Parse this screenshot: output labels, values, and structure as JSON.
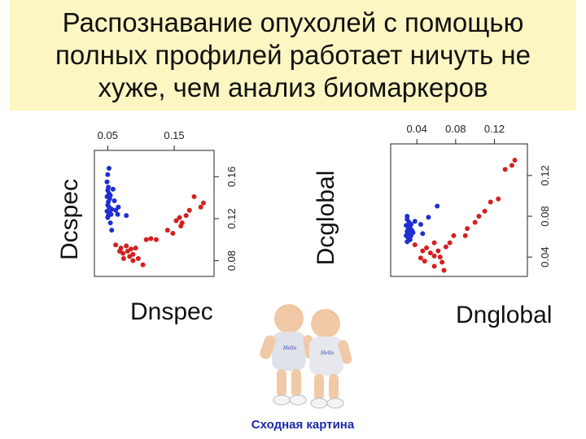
{
  "title": {
    "lines": [
      "Распознавание опухолей с помощью",
      "полных профилей работает ничуть не",
      "хуже, чем анализ биомаркеров"
    ]
  },
  "caption": "Сходная картина",
  "colors": {
    "title_background": "#fbf6c2",
    "series_blue": "#1f2fd0",
    "series_red": "#d42020",
    "caption": "#1c2aa8"
  },
  "chart_data": [
    {
      "type": "scatter",
      "xlabel": "Dnspec",
      "ylabel": "Dcspec",
      "x_ticks": [
        "0.05",
        "0.15"
      ],
      "y_ticks": [
        "0.08",
        "0.12",
        "0.16"
      ],
      "xlim": [
        0.03,
        0.21
      ],
      "ylim": [
        0.065,
        0.185
      ],
      "series": [
        {
          "color": "#1f2fd0",
          "points": [
            [
              0.05,
              0.162
            ],
            [
              0.052,
              0.168
            ],
            [
              0.049,
              0.155
            ],
            [
              0.051,
              0.15
            ],
            [
              0.05,
              0.147
            ],
            [
              0.052,
              0.144
            ],
            [
              0.049,
              0.141
            ],
            [
              0.053,
              0.139
            ],
            [
              0.051,
              0.136
            ],
            [
              0.054,
              0.142
            ],
            [
              0.05,
              0.133
            ],
            [
              0.052,
              0.131
            ],
            [
              0.056,
              0.129
            ],
            [
              0.049,
              0.127
            ],
            [
              0.053,
              0.126
            ],
            [
              0.051,
              0.123
            ],
            [
              0.055,
              0.124
            ],
            [
              0.05,
              0.121
            ],
            [
              0.058,
              0.148
            ],
            [
              0.06,
              0.137
            ],
            [
              0.062,
              0.128
            ],
            [
              0.065,
              0.124
            ],
            [
              0.066,
              0.131
            ],
            [
              0.078,
              0.123
            ],
            [
              0.056,
              0.109
            ],
            [
              0.054,
              0.116
            ]
          ]
        },
        {
          "color": "#d42020",
          "points": [
            [
              0.062,
              0.095
            ],
            [
              0.07,
              0.092
            ],
            [
              0.068,
              0.089
            ],
            [
              0.073,
              0.087
            ],
            [
              0.078,
              0.094
            ],
            [
              0.08,
              0.089
            ],
            [
              0.085,
              0.091
            ],
            [
              0.088,
              0.086
            ],
            [
              0.074,
              0.082
            ],
            [
              0.083,
              0.084
            ],
            [
              0.092,
              0.092
            ],
            [
              0.096,
              0.082
            ],
            [
              0.088,
              0.08
            ],
            [
              0.103,
              0.076
            ],
            [
              0.108,
              0.1
            ],
            [
              0.115,
              0.101
            ],
            [
              0.123,
              0.1
            ],
            [
              0.14,
              0.109
            ],
            [
              0.148,
              0.106
            ],
            [
              0.153,
              0.118
            ],
            [
              0.158,
              0.121
            ],
            [
              0.16,
              0.113
            ],
            [
              0.162,
              0.116
            ],
            [
              0.173,
              0.128
            ],
            [
              0.168,
              0.123
            ],
            [
              0.18,
              0.141
            ],
            [
              0.19,
              0.131
            ],
            [
              0.194,
              0.135
            ]
          ]
        }
      ]
    },
    {
      "type": "scatter",
      "xlabel": "Dnglobal",
      "ylabel": "Dcglobal",
      "x_ticks": [
        "0.04",
        "0.08",
        "0.12"
      ],
      "y_ticks": [
        "0.04",
        "0.08",
        "0.12"
      ],
      "xlim": [
        0.013,
        0.154
      ],
      "ylim": [
        0.021,
        0.151
      ],
      "series": [
        {
          "color": "#1f2fd0",
          "points": [
            [
              0.03,
              0.077
            ],
            [
              0.032,
              0.074
            ],
            [
              0.029,
              0.071
            ],
            [
              0.033,
              0.069
            ],
            [
              0.031,
              0.067
            ],
            [
              0.034,
              0.072
            ],
            [
              0.03,
              0.065
            ],
            [
              0.032,
              0.063
            ],
            [
              0.029,
              0.061
            ],
            [
              0.035,
              0.066
            ],
            [
              0.031,
              0.059
            ],
            [
              0.033,
              0.057
            ],
            [
              0.03,
              0.055
            ],
            [
              0.034,
              0.061
            ],
            [
              0.036,
              0.064
            ],
            [
              0.032,
              0.07
            ],
            [
              0.038,
              0.075
            ],
            [
              0.044,
              0.072
            ],
            [
              0.046,
              0.063
            ],
            [
              0.052,
              0.079
            ],
            [
              0.061,
              0.09
            ],
            [
              0.03,
              0.08
            ]
          ]
        },
        {
          "color": "#d42020",
          "points": [
            [
              0.038,
              0.052
            ],
            [
              0.046,
              0.046
            ],
            [
              0.05,
              0.049
            ],
            [
              0.054,
              0.044
            ],
            [
              0.058,
              0.041
            ],
            [
              0.044,
              0.039
            ],
            [
              0.048,
              0.036
            ],
            [
              0.062,
              0.046
            ],
            [
              0.064,
              0.04
            ],
            [
              0.066,
              0.035
            ],
            [
              0.058,
              0.031
            ],
            [
              0.068,
              0.027
            ],
            [
              0.058,
              0.054
            ],
            [
              0.07,
              0.05
            ],
            [
              0.074,
              0.054
            ],
            [
              0.078,
              0.061
            ],
            [
              0.09,
              0.061
            ],
            [
              0.092,
              0.068
            ],
            [
              0.1,
              0.074
            ],
            [
              0.104,
              0.08
            ],
            [
              0.11,
              0.085
            ],
            [
              0.116,
              0.094
            ],
            [
              0.124,
              0.097
            ],
            [
              0.131,
              0.126
            ],
            [
              0.138,
              0.13
            ],
            [
              0.141,
              0.135
            ]
          ]
        }
      ]
    }
  ]
}
